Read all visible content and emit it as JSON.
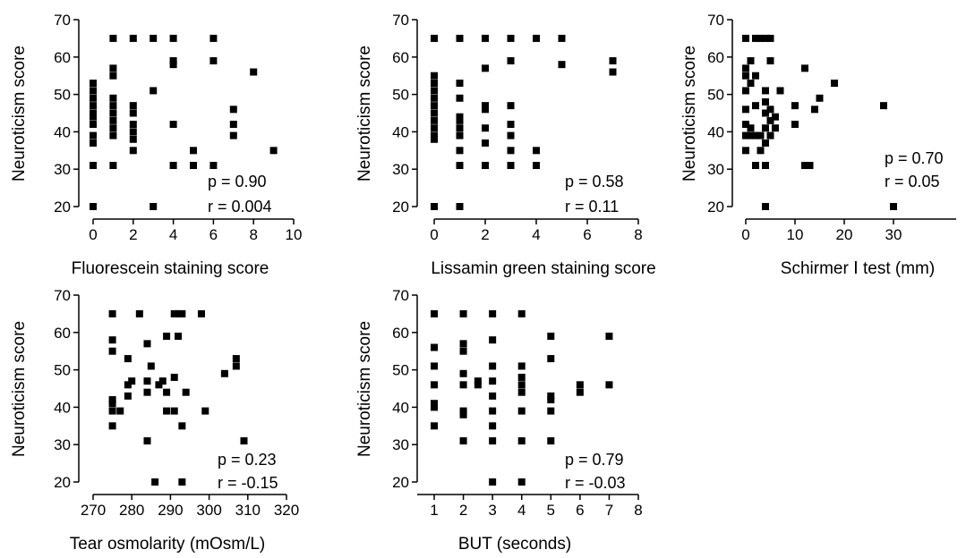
{
  "chart_data": [
    {
      "id": "fluorescein",
      "type": "scatter",
      "title": "",
      "xlabel": "Fluorescein staining score",
      "ylabel": "Neuroticism score",
      "xlim": [
        0,
        10
      ],
      "ylim": [
        20,
        70
      ],
      "xticks": [
        0,
        2,
        4,
        6,
        8,
        10
      ],
      "yticks": [
        20,
        30,
        40,
        50,
        60,
        70
      ],
      "stats": [
        "p = 0.90",
        "r = 0.004"
      ],
      "points": [
        [
          0,
          20
        ],
        [
          0,
          31
        ],
        [
          0,
          37
        ],
        [
          0,
          39
        ],
        [
          0,
          42
        ],
        [
          0,
          44
        ],
        [
          0,
          45
        ],
        [
          0,
          47
        ],
        [
          0,
          49
        ],
        [
          0,
          51
        ],
        [
          0,
          53
        ],
        [
          1,
          31
        ],
        [
          1,
          39
        ],
        [
          1,
          41
        ],
        [
          1,
          43
        ],
        [
          1,
          45
        ],
        [
          1,
          47
        ],
        [
          1,
          49
        ],
        [
          1,
          55
        ],
        [
          1,
          57
        ],
        [
          1,
          65
        ],
        [
          2,
          35
        ],
        [
          2,
          38
        ],
        [
          2,
          40
        ],
        [
          2,
          42
        ],
        [
          2,
          45
        ],
        [
          2,
          47
        ],
        [
          2,
          65
        ],
        [
          3,
          20
        ],
        [
          3,
          51
        ],
        [
          3,
          65
        ],
        [
          4,
          31
        ],
        [
          4,
          42
        ],
        [
          4,
          58
        ],
        [
          4,
          59
        ],
        [
          4,
          65
        ],
        [
          5,
          31
        ],
        [
          5,
          35
        ],
        [
          6,
          31
        ],
        [
          6,
          59
        ],
        [
          6,
          65
        ],
        [
          7,
          39
        ],
        [
          7,
          42
        ],
        [
          7,
          46
        ],
        [
          8,
          56
        ],
        [
          9,
          35
        ]
      ]
    },
    {
      "id": "lissamin",
      "type": "scatter",
      "title": "",
      "xlabel": "Lissamin green staining score",
      "ylabel": "Neuroticism score",
      "xlim": [
        0,
        8
      ],
      "ylim": [
        20,
        70
      ],
      "xticks": [
        0,
        2,
        4,
        6,
        8
      ],
      "yticks": [
        20,
        30,
        40,
        50,
        60,
        70
      ],
      "stats": [
        "p = 0.58",
        "r = 0.11"
      ],
      "points": [
        [
          0,
          20
        ],
        [
          0,
          38
        ],
        [
          0,
          39
        ],
        [
          0,
          41
        ],
        [
          0,
          43
        ],
        [
          0,
          45
        ],
        [
          0,
          47
        ],
        [
          0,
          49
        ],
        [
          0,
          51
        ],
        [
          0,
          53
        ],
        [
          0,
          55
        ],
        [
          0,
          65
        ],
        [
          1,
          20
        ],
        [
          1,
          31
        ],
        [
          1,
          35
        ],
        [
          1,
          39
        ],
        [
          1,
          41
        ],
        [
          1,
          43
        ],
        [
          1,
          44
        ],
        [
          1,
          49
        ],
        [
          1,
          53
        ],
        [
          1,
          65
        ],
        [
          2,
          31
        ],
        [
          2,
          37
        ],
        [
          2,
          41
        ],
        [
          2,
          46
        ],
        [
          2,
          47
        ],
        [
          2,
          57
        ],
        [
          2,
          65
        ],
        [
          3,
          31
        ],
        [
          3,
          35
        ],
        [
          3,
          39
        ],
        [
          3,
          42
        ],
        [
          3,
          47
        ],
        [
          3,
          59
        ],
        [
          3,
          65
        ],
        [
          4,
          31
        ],
        [
          4,
          35
        ],
        [
          4,
          65
        ],
        [
          5,
          58
        ],
        [
          5,
          65
        ],
        [
          7,
          56
        ],
        [
          7,
          59
        ]
      ]
    },
    {
      "id": "schirmer",
      "type": "scatter",
      "title": "",
      "xlabel": "Schirmer Ⅰ test (mm)",
      "ylabel": "Neuroticism score",
      "xlim": [
        0,
        36
      ],
      "ylim": [
        20,
        70
      ],
      "xticks": [
        0,
        10,
        20,
        30
      ],
      "yticks": [
        20,
        30,
        40,
        50,
        60,
        70
      ],
      "stats": [
        "p = 0.70",
        "r = 0.05"
      ],
      "points": [
        [
          0,
          35
        ],
        [
          0,
          39
        ],
        [
          0,
          42
        ],
        [
          0,
          46
        ],
        [
          0,
          51
        ],
        [
          0,
          55
        ],
        [
          0,
          57
        ],
        [
          0,
          65
        ],
        [
          1,
          39
        ],
        [
          1,
          41
        ],
        [
          1,
          53
        ],
        [
          1,
          59
        ],
        [
          2,
          31
        ],
        [
          2,
          39
        ],
        [
          2,
          47
        ],
        [
          2,
          55
        ],
        [
          2,
          65
        ],
        [
          3,
          35
        ],
        [
          3,
          39
        ],
        [
          3,
          65
        ],
        [
          4,
          20
        ],
        [
          4,
          31
        ],
        [
          4,
          37
        ],
        [
          4,
          41
        ],
        [
          4,
          45
        ],
        [
          4,
          48
        ],
        [
          4,
          51
        ],
        [
          4,
          65
        ],
        [
          5,
          39
        ],
        [
          5,
          43
        ],
        [
          5,
          46
        ],
        [
          5,
          59
        ],
        [
          5,
          65
        ],
        [
          6,
          41
        ],
        [
          6,
          44
        ],
        [
          7,
          51
        ],
        [
          10,
          42
        ],
        [
          10,
          47
        ],
        [
          12,
          31
        ],
        [
          12,
          57
        ],
        [
          13,
          31
        ],
        [
          14,
          46
        ],
        [
          15,
          49
        ],
        [
          18,
          53
        ],
        [
          28,
          47
        ],
        [
          30,
          20
        ]
      ]
    },
    {
      "id": "osmolarity",
      "type": "scatter",
      "title": "",
      "xlabel": "Tear osmolarity (mOsm/L)",
      "ylabel": "Neuroticism score",
      "xlim": [
        270,
        320
      ],
      "ylim": [
        20,
        70
      ],
      "xticks": [
        270,
        280,
        290,
        300,
        310,
        320
      ],
      "yticks": [
        20,
        30,
        40,
        50,
        60,
        70
      ],
      "stats": [
        "p = 0.23",
        "r = -0.15"
      ],
      "points": [
        [
          275,
          35
        ],
        [
          275,
          39
        ],
        [
          275,
          41
        ],
        [
          275,
          42
        ],
        [
          275,
          55
        ],
        [
          275,
          58
        ],
        [
          275,
          65
        ],
        [
          277,
          39
        ],
        [
          279,
          43
        ],
        [
          279,
          46
        ],
        [
          279,
          53
        ],
        [
          280,
          47
        ],
        [
          282,
          65
        ],
        [
          284,
          31
        ],
        [
          284,
          44
        ],
        [
          284,
          47
        ],
        [
          284,
          57
        ],
        [
          285,
          51
        ],
        [
          286,
          20
        ],
        [
          287,
          46
        ],
        [
          288,
          47
        ],
        [
          289,
          39
        ],
        [
          289,
          44
        ],
        [
          289,
          59
        ],
        [
          291,
          39
        ],
        [
          291,
          48
        ],
        [
          291,
          65
        ],
        [
          292,
          59
        ],
        [
          292,
          65
        ],
        [
          293,
          20
        ],
        [
          293,
          35
        ],
        [
          293,
          65
        ],
        [
          294,
          44
        ],
        [
          298,
          65
        ],
        [
          299,
          39
        ],
        [
          304,
          49
        ],
        [
          307,
          51
        ],
        [
          307,
          53
        ],
        [
          309,
          31
        ]
      ]
    },
    {
      "id": "but",
      "type": "scatter",
      "title": "",
      "xlabel": "BUT (seconds)",
      "ylabel": "Neuroticism score",
      "xlim": [
        0.5,
        8
      ],
      "ylim": [
        20,
        70
      ],
      "xticks": [
        1,
        2,
        3,
        4,
        5,
        6,
        7,
        8
      ],
      "yticks": [
        20,
        30,
        40,
        50,
        60,
        70
      ],
      "stats": [
        "p = 0.79",
        "r = -0.03"
      ],
      "points": [
        [
          1,
          35
        ],
        [
          1,
          40
        ],
        [
          1,
          41
        ],
        [
          1,
          46
        ],
        [
          1,
          51
        ],
        [
          1,
          56
        ],
        [
          1,
          65
        ],
        [
          2,
          31
        ],
        [
          2,
          38
        ],
        [
          2,
          39
        ],
        [
          2,
          46
        ],
        [
          2,
          49
        ],
        [
          2,
          55
        ],
        [
          2,
          57
        ],
        [
          2,
          65
        ],
        [
          2.5,
          46
        ],
        [
          2.5,
          47
        ],
        [
          3,
          20
        ],
        [
          3,
          31
        ],
        [
          3,
          35
        ],
        [
          3,
          39
        ],
        [
          3,
          43
        ],
        [
          3,
          47
        ],
        [
          3,
          51
        ],
        [
          3,
          58
        ],
        [
          3,
          65
        ],
        [
          4,
          20
        ],
        [
          4,
          31
        ],
        [
          4,
          39
        ],
        [
          4,
          44
        ],
        [
          4,
          46
        ],
        [
          4,
          48
        ],
        [
          4,
          51
        ],
        [
          4,
          65
        ],
        [
          5,
          31
        ],
        [
          5,
          39
        ],
        [
          5,
          42
        ],
        [
          5,
          43
        ],
        [
          5,
          53
        ],
        [
          5,
          59
        ],
        [
          6,
          44
        ],
        [
          6,
          46
        ],
        [
          7,
          46
        ],
        [
          7,
          59
        ]
      ]
    }
  ]
}
